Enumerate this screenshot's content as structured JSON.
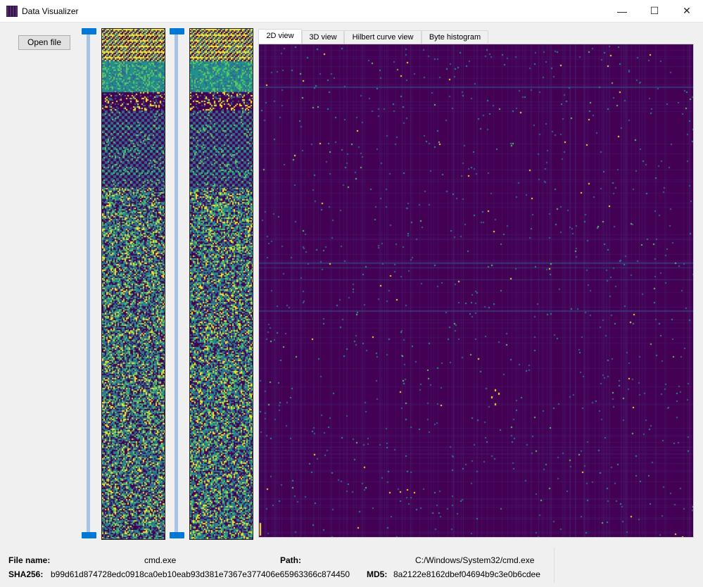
{
  "window": {
    "title": "Data Visualizer"
  },
  "title_buttons": {
    "minimize": "—",
    "maximize": "☐",
    "close": "✕"
  },
  "toolbar": {
    "open_file_label": "Open file"
  },
  "tabs": [
    {
      "label": "2D view",
      "active": true
    },
    {
      "label": "3D view",
      "active": false
    },
    {
      "label": "Hilbert curve view",
      "active": false
    },
    {
      "label": "Byte histogram",
      "active": false
    }
  ],
  "file_info": {
    "file_name_label": "File name:",
    "file_name": "cmd.exe",
    "path_label": "Path:",
    "path": "C:/Windows/System32/cmd.exe",
    "sha256_label": "SHA256:",
    "sha256": "b99d61d874728edc0918ca0eb10eab93d381e7367e377406e65963366c874450",
    "md5_label": "MD5:",
    "md5": "8a2122e8162dbef04694b9c3e0b6cdee"
  },
  "colors": {
    "viridis_dark": "#440154",
    "viridis_blue": "#31688e",
    "viridis_teal": "#21918c",
    "viridis_green": "#5ec962",
    "viridis_yellow": "#fde725",
    "slider_handle": "#0078d7"
  },
  "sliders": [
    {
      "name": "range-slider-left",
      "start": 0.0,
      "end": 1.0
    },
    {
      "name": "range-slider-right",
      "start": 0.0,
      "end": 1.0
    }
  ]
}
